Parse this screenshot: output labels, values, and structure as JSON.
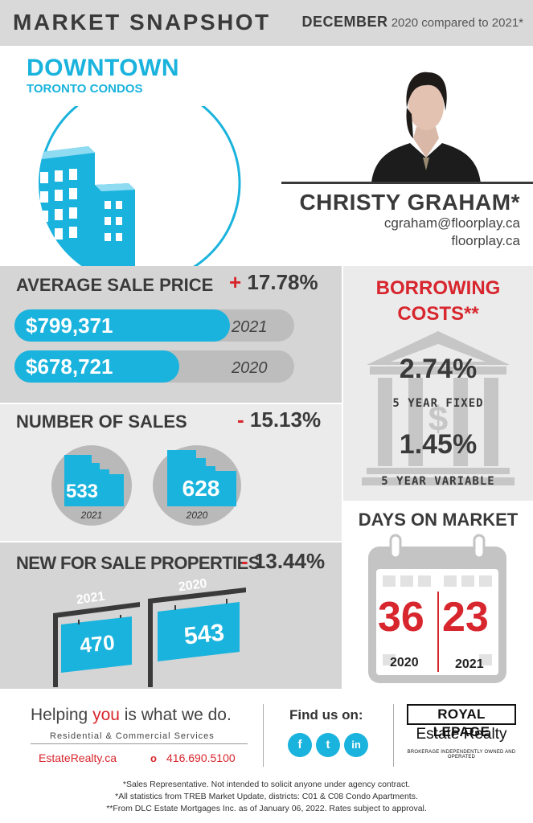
{
  "header": {
    "title": "MARKET SNAPSHOT",
    "month": "DECEMBER",
    "comparison": "2020 compared to 2021*"
  },
  "location": {
    "title": "DOWNTOWN",
    "subtitle": "TORONTO CONDOS",
    "icon": "condo-buildings-icon"
  },
  "agent": {
    "name": "CHRISTY GRAHAM*",
    "email": "cgraham@floorplay.ca",
    "website": "floorplay.ca"
  },
  "average_sale_price": {
    "title": "AVERAGE SALE PRICE",
    "change_sign": "+",
    "change": "17.78%",
    "bars": [
      {
        "value": "$799,371",
        "year": "2021",
        "fill": 0.77
      },
      {
        "value": "$678,721",
        "year": "2020",
        "fill": 0.59
      }
    ]
  },
  "number_of_sales": {
    "title": "NUMBER OF SALES",
    "change_sign": "-",
    "change": "15.13%",
    "items": [
      {
        "value": "533",
        "year": "2021"
      },
      {
        "value": "628",
        "year": "2020"
      }
    ]
  },
  "new_for_sale": {
    "title": "NEW FOR SALE PROPERTIES",
    "change_sign": "-",
    "change": "13.44%",
    "items": [
      {
        "value": "470",
        "year": "2021"
      },
      {
        "value": "543",
        "year": "2020"
      }
    ]
  },
  "borrowing_costs": {
    "title_line1": "BORROWING",
    "title_line2": "COSTS**",
    "icon": "bank-icon",
    "rates": [
      {
        "value": "2.74%",
        "label": "5 YEAR FIXED"
      },
      {
        "value": "1.45%",
        "label": "5 YEAR VARIABLE"
      }
    ]
  },
  "days_on_market": {
    "title": "DAYS ON MARKET",
    "icon": "calendar-icon",
    "items": [
      {
        "value": "36",
        "year": "2020"
      },
      {
        "value": "23",
        "year": "2021"
      }
    ]
  },
  "footer": {
    "slogan_pre": "Helping ",
    "slogan_highlight": "you",
    "slogan_post": " is what we do.",
    "services": "Residential & Commercial Services",
    "website": "EstateRealty.ca",
    "phone": "416.690.5100",
    "find_us": "Find us on:",
    "social": [
      {
        "label": "f",
        "icon": "facebook-icon"
      },
      {
        "label": "t",
        "icon": "twitter-icon"
      },
      {
        "label": "in",
        "icon": "linkedin-icon"
      }
    ],
    "brand": "ROYAL LEPAGE",
    "brand_sub": "Estate Realty",
    "brand_tag": "BROKERAGE INDEPENDENTLY OWNED AND OPERATED",
    "disclaimers": [
      "*Sales Representative. Not intended to solicit anyone under agency contract.",
      "*All statistics from TREB Market Update, districts: C01 & C08 Condo Apartments.",
      "**From DLC Estate Mortgages Inc. as of January 06, 2022. Rates subject to approval."
    ]
  },
  "colors": {
    "accent_blue": "#1ab3dd",
    "accent_red": "#d7262d",
    "dark_text": "#3a3a3a",
    "panel_gray": "#d5d5d5",
    "panel_light": "#ebebeb"
  }
}
